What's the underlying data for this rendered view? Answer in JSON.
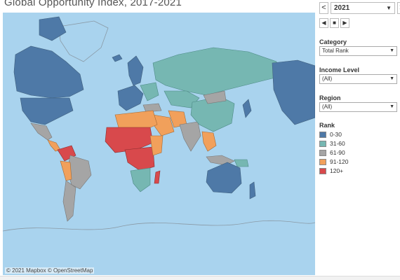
{
  "title": "Global Opportunity Index, 2017-2021",
  "year_filter": {
    "value": "2021",
    "prev": "<",
    "next": ">",
    "back": "◀",
    "stop": "■",
    "forward": "▶"
  },
  "filters": [
    {
      "label": "Category",
      "value": "Total Rank"
    },
    {
      "label": "Income Level",
      "value": "(All)"
    },
    {
      "label": "Region",
      "value": "(All)"
    }
  ],
  "legend": {
    "title": "Rank",
    "items": [
      {
        "label": "0-30",
        "color": "#4e79a7"
      },
      {
        "label": "31-60",
        "color": "#76b7b2"
      },
      {
        "label": "61-90",
        "color": "#a5a5a5"
      },
      {
        "label": "91-120",
        "color": "#f1a05b"
      },
      {
        "label": "120+",
        "color": "#d8494c"
      }
    ]
  },
  "map": {
    "water_color": "#a9d3ee",
    "attribution": "© 2021 Mapbox © OpenStreetMap"
  }
}
